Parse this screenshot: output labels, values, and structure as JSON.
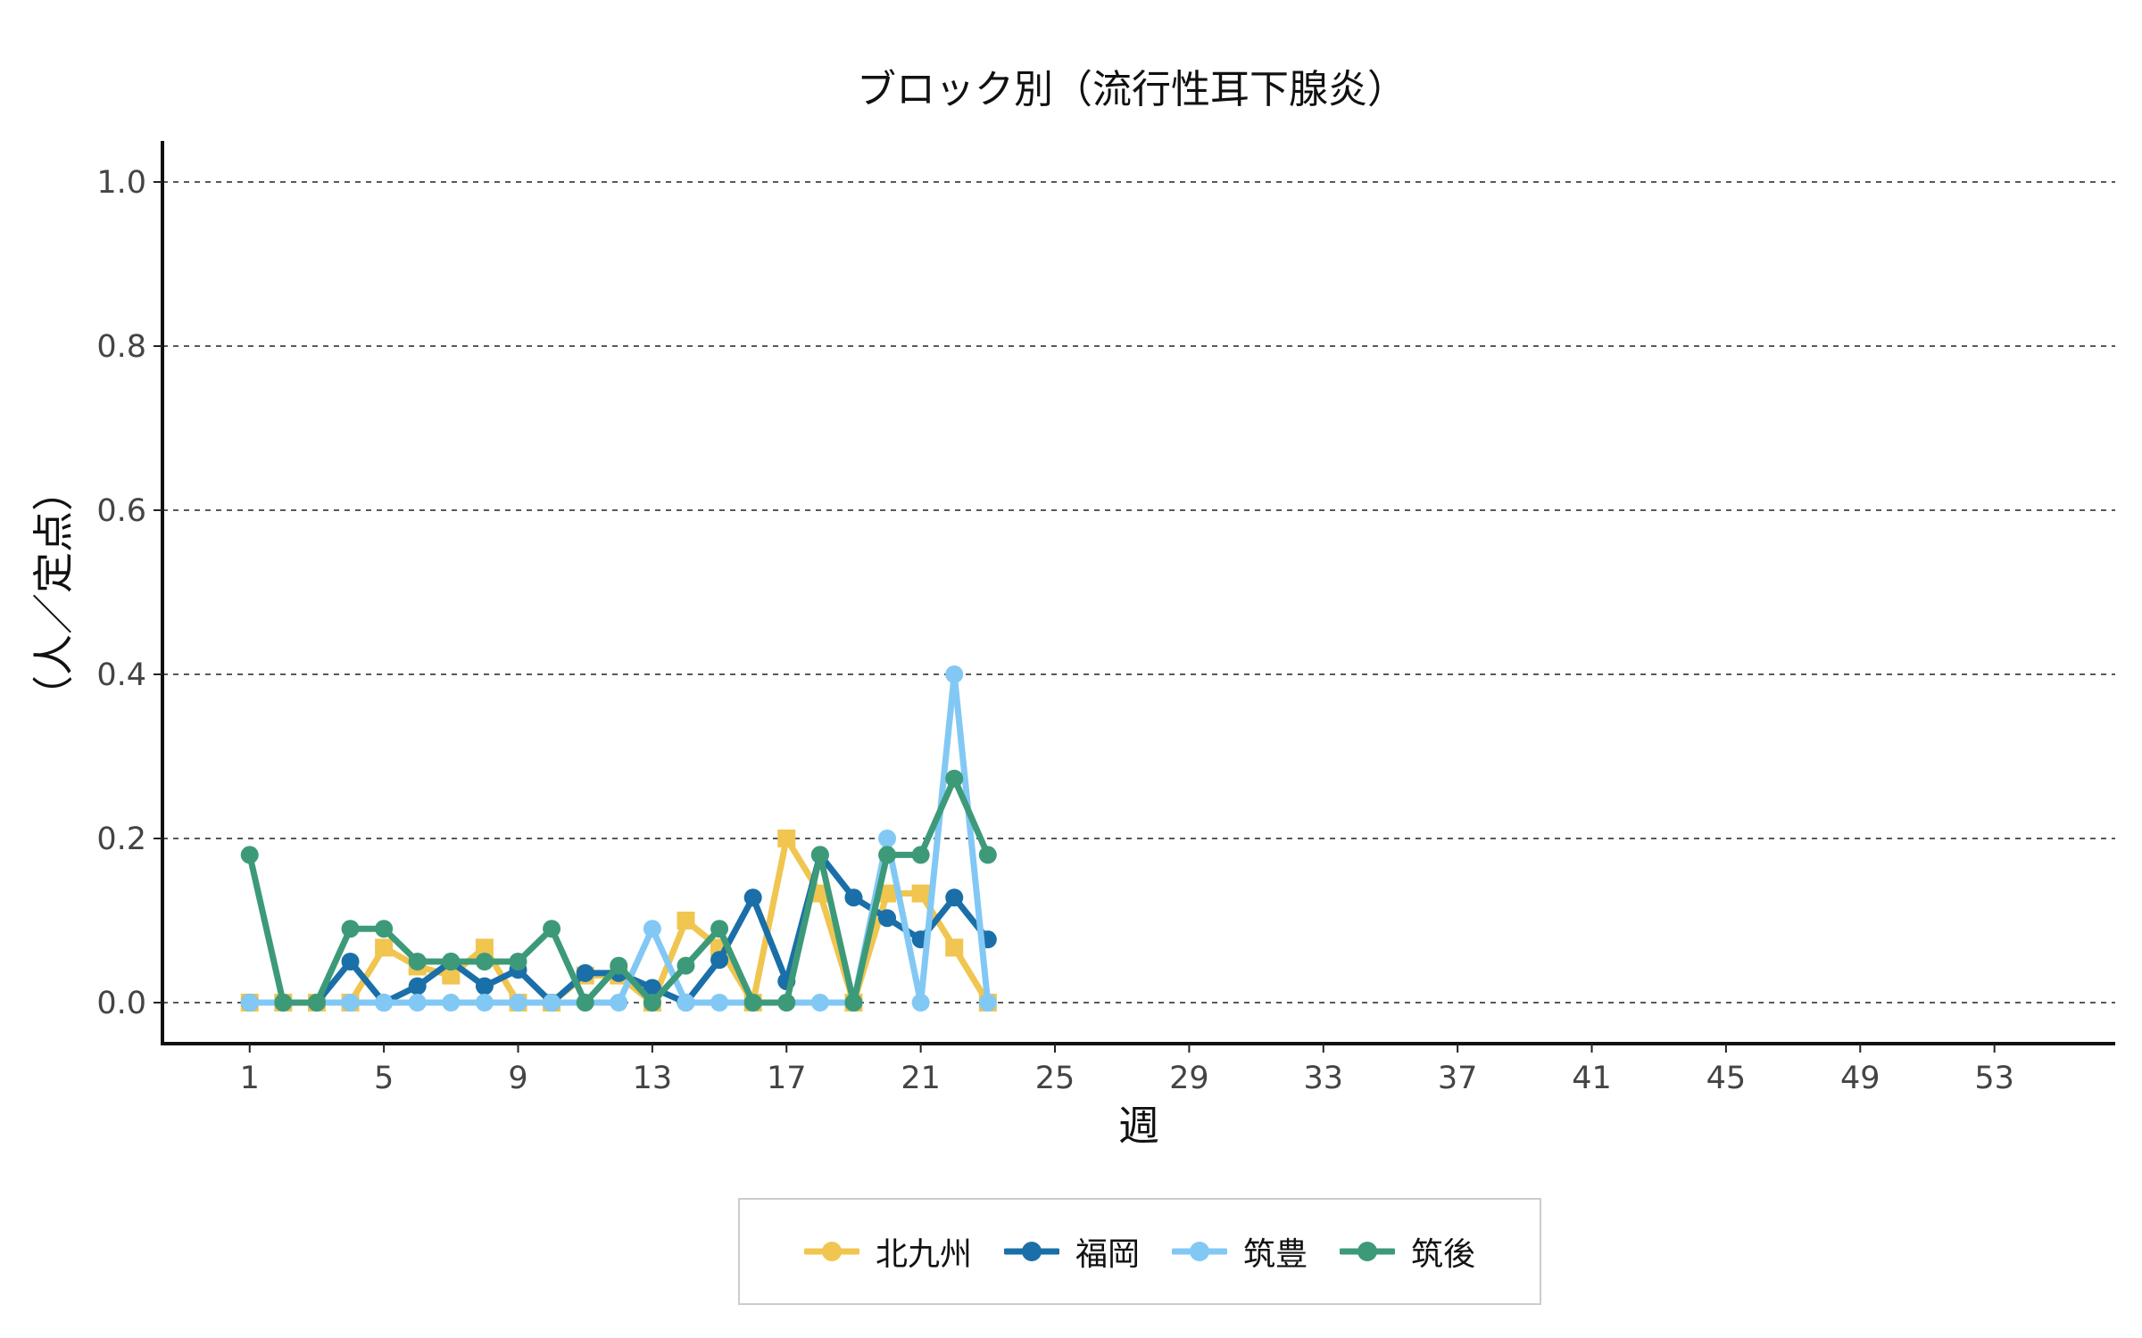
{
  "chart_data": {
    "type": "line",
    "title": "ブロック別（流行性耳下腺炎）",
    "xlabel": "週",
    "ylabel": "（人／定点）",
    "xlim": [
      -1.6,
      56.6
    ],
    "ylim": [
      -0.05,
      1.05
    ],
    "xticks": [
      1,
      5,
      9,
      13,
      17,
      21,
      25,
      29,
      33,
      37,
      41,
      45,
      49,
      53
    ],
    "yticks": [
      0.0,
      0.2,
      0.4,
      0.6,
      0.8,
      1.0
    ],
    "ytick_labels": [
      "0.0",
      "0.2",
      "0.4",
      "0.6",
      "0.8",
      "1.0"
    ],
    "grid": "horizontal-dashed",
    "legend_position": "bottom",
    "x": [
      1,
      2,
      3,
      4,
      5,
      6,
      7,
      8,
      9,
      10,
      11,
      12,
      13,
      14,
      15,
      16,
      17,
      18,
      19,
      20,
      21,
      22,
      23
    ],
    "series": [
      {
        "name": "北九州",
        "color": "#f0c550",
        "marker": "square",
        "values": [
          0,
          0,
          0,
          0,
          0.067,
          0.044,
          0.033,
          0.067,
          0,
          0,
          0.033,
          0.033,
          0,
          0.1,
          0.067,
          0,
          0.2,
          0.133,
          0,
          0.133,
          0.133,
          0.067,
          0
        ]
      },
      {
        "name": "福岡",
        "color": "#1a6fa8",
        "marker": "circle",
        "values": [
          0,
          0,
          0,
          0.05,
          0,
          0.02,
          0.05,
          0.02,
          0.04,
          0,
          0.036,
          0.036,
          0.018,
          0,
          0.052,
          0.128,
          0.026,
          0.18,
          0.128,
          0.103,
          0.077,
          0.128,
          0.077
        ]
      },
      {
        "name": "筑豊",
        "color": "#82c8f5",
        "marker": "circle",
        "values": [
          0,
          0,
          0,
          0,
          0,
          0,
          0,
          0,
          0,
          0,
          0,
          0,
          0.09,
          0,
          0,
          0,
          0,
          0,
          0,
          0.2,
          0,
          0.4,
          0
        ]
      },
      {
        "name": "筑後",
        "color": "#3d9a79",
        "marker": "circle",
        "values": [
          0.18,
          0,
          0,
          0.09,
          0.09,
          0.05,
          0.05,
          0.05,
          0.05,
          0.09,
          0,
          0.045,
          0,
          0.045,
          0.09,
          0,
          0,
          0.18,
          0,
          0.18,
          0.18,
          0.273,
          0.18
        ]
      }
    ]
  }
}
